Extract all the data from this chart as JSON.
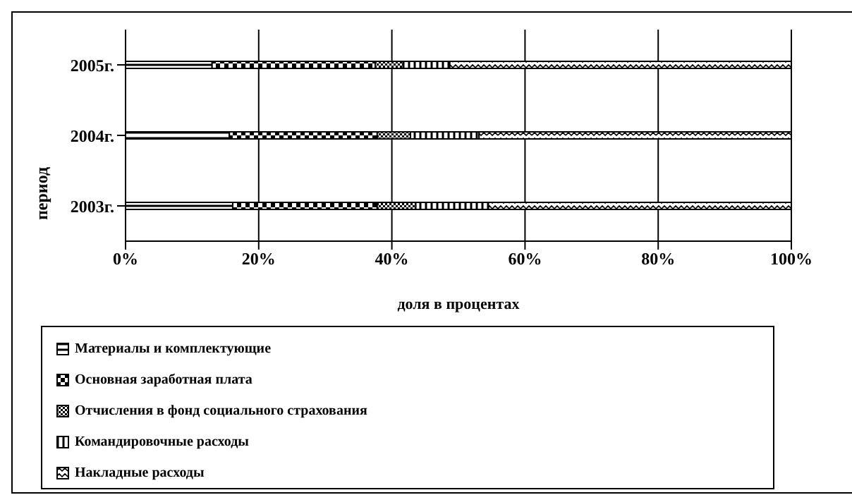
{
  "chart_data": {
    "type": "bar",
    "orientation": "horizontal",
    "stacked": true,
    "xlabel": "доля в процентах",
    "ylabel": "период",
    "categories": [
      "2005г.",
      "2004г.",
      "2003г."
    ],
    "series": [
      {
        "name": "Материалы и комплектующие",
        "color": "#000000",
        "values": [
          13.0,
          15.6,
          16.1
        ]
      },
      {
        "name": "Основная заработная плата",
        "color": "#000000",
        "values": [
          24.5,
          22.2,
          21.7
        ]
      },
      {
        "name": "Отчисления в фонд социального страхования",
        "color": "#000000",
        "values": [
          4.2,
          5.0,
          5.8
        ]
      },
      {
        "name": "Командировочные расходы",
        "color": "#000000",
        "values": [
          7.0,
          10.3,
          10.9
        ]
      },
      {
        "name": "Накладные расходы",
        "color": "#000000",
        "values": [
          51.3,
          46.9,
          45.5
        ]
      }
    ],
    "xlim": [
      0,
      100
    ],
    "xticks": [
      {
        "value": 0,
        "label": "0%"
      },
      {
        "value": 20,
        "label": "20%"
      },
      {
        "value": 40,
        "label": "40%"
      },
      {
        "value": 60,
        "label": "60%"
      },
      {
        "value": 80,
        "label": "80%"
      },
      {
        "value": 100,
        "label": "100%"
      }
    ],
    "grid": "x",
    "legend": "bottom"
  }
}
